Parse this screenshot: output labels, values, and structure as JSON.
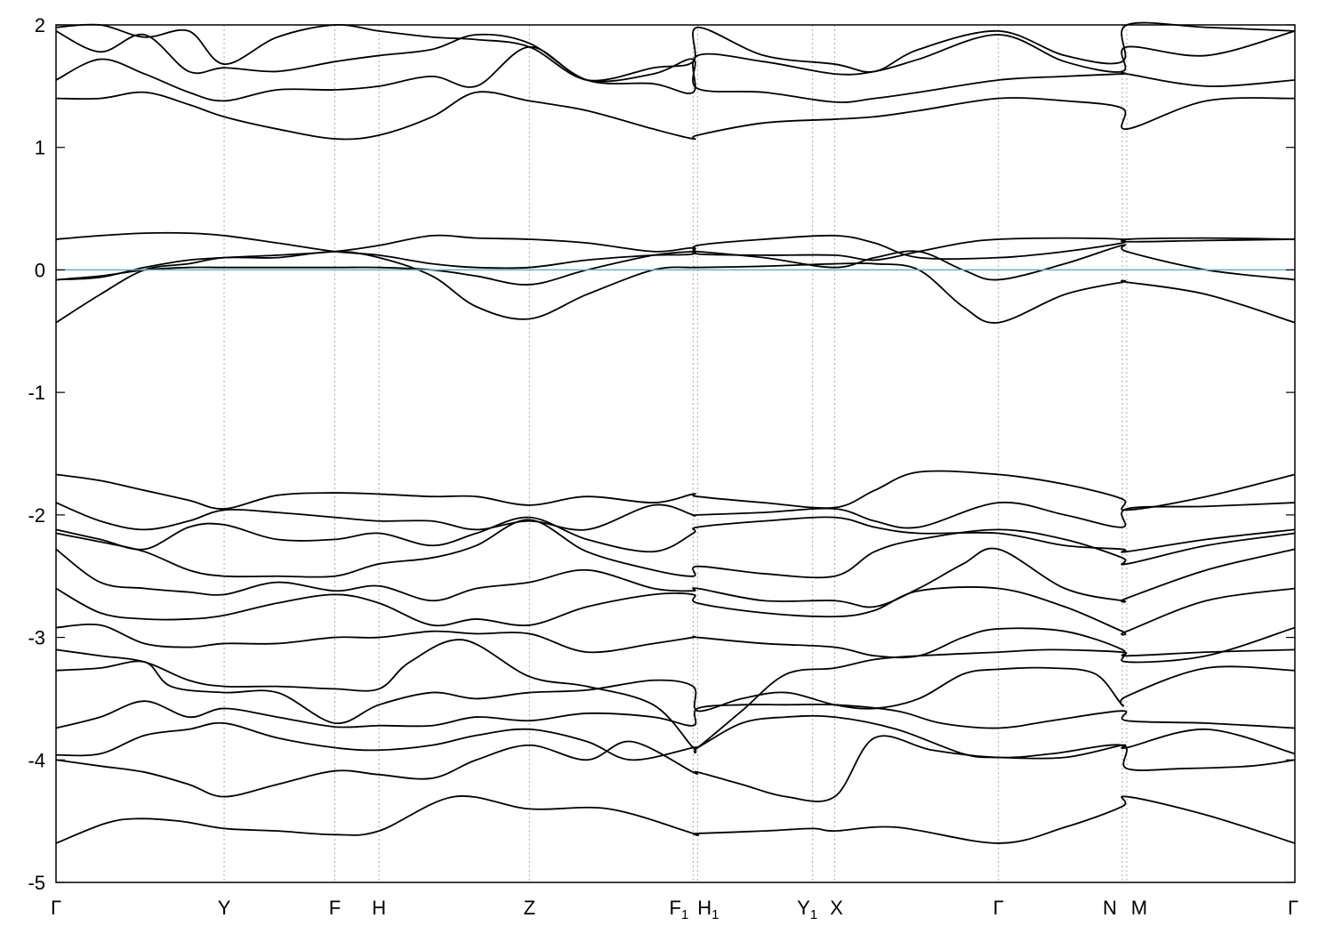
{
  "chart_data": {
    "type": "line",
    "title": "",
    "xlabel": "",
    "ylabel": "",
    "ylim": [
      -5,
      2
    ],
    "yticks": [
      -5,
      -4,
      -3,
      -2,
      -1,
      0,
      1,
      2
    ],
    "xlim": [
      0,
      28
    ],
    "grid": "vertical dotted lines at high-symmetry points",
    "fermi_level": 0,
    "colors": {
      "bands": "#000000",
      "fermi": "#5fb4c8",
      "grid": "#aaaaaa"
    },
    "kpoints": [
      {
        "label": "Γ",
        "sub": "",
        "x": 0
      },
      {
        "label": "Y",
        "sub": "",
        "x": 3.8
      },
      {
        "label": "F",
        "sub": "",
        "x": 6.3
      },
      {
        "label": "H",
        "sub": "",
        "x": 7.3
      },
      {
        "label": "Z",
        "sub": "",
        "x": 10.7
      },
      {
        "label": "F",
        "sub": "1",
        "x": 14.4
      },
      {
        "label": "H",
        "sub": "1",
        "x": 14.5
      },
      {
        "label": "Y",
        "sub": "1",
        "x": 17.1
      },
      {
        "label": "X",
        "sub": "",
        "x": 17.6
      },
      {
        "label": "Γ",
        "sub": "",
        "x": 21.3
      },
      {
        "label": "N",
        "sub": "",
        "x": 24.1
      },
      {
        "label": "M",
        "sub": "",
        "x": 24.2
      },
      {
        "label": "Γ",
        "sub": "",
        "x": 28
      }
    ],
    "series": [
      {
        "x": [
          0,
          1.1,
          1.8,
          2.8,
          3.8,
          5,
          6.3,
          7.3,
          9,
          10.7,
          12.5,
          14.4,
          14.5,
          16,
          17.1,
          17.6,
          19,
          21.3,
          22.8,
          24.1,
          24.2,
          26,
          28
        ],
        "y": [
          -4.68,
          -4.52,
          -4.48,
          -4.5,
          -4.56,
          -4.58,
          -4.61,
          -4.58,
          -4.3,
          -4.4,
          -4.4,
          -4.6,
          -4.6,
          -4.58,
          -4.56,
          -4.58,
          -4.55,
          -4.68,
          -4.55,
          -4.38,
          -4.3,
          -4.45,
          -4.68
        ]
      },
      {
        "x": [
          0,
          1,
          2,
          3,
          3.8,
          5,
          6.3,
          7.3,
          8.5,
          9.5,
          10.7,
          12,
          13,
          14.4,
          14.5,
          15.5,
          16.5,
          17.6,
          18.5,
          19.8,
          21.3,
          22.5,
          24.1,
          24.2,
          25.5,
          27,
          28
        ],
        "y": [
          -4.0,
          -4.05,
          -4.1,
          -4.2,
          -4.3,
          -4.2,
          -4.09,
          -4.12,
          -4.15,
          -4.0,
          -3.88,
          -4.0,
          -3.85,
          -4.1,
          -4.1,
          -4.2,
          -4.3,
          -4.3,
          -3.82,
          -3.92,
          -3.98,
          -3.95,
          -3.88,
          -4.07,
          -4.07,
          -4.05,
          -4.0
        ]
      },
      {
        "x": [
          0,
          1,
          2,
          3,
          3.8,
          5,
          6.3,
          7.3,
          8.5,
          9.5,
          10.7,
          12,
          13,
          14.4,
          14.5,
          15.5,
          16.5,
          17.6,
          19,
          20.5,
          21.3,
          22.8,
          24.1,
          24.2,
          26,
          28
        ],
        "y": [
          -3.96,
          -3.95,
          -3.8,
          -3.75,
          -3.7,
          -3.82,
          -3.9,
          -3.92,
          -3.88,
          -3.8,
          -3.75,
          -3.85,
          -4.0,
          -3.9,
          -3.9,
          -3.7,
          -3.65,
          -3.65,
          -3.75,
          -3.95,
          -3.98,
          -3.98,
          -3.88,
          -3.9,
          -3.75,
          -3.95
        ]
      },
      {
        "x": [
          0,
          1,
          2,
          3,
          3.8,
          5,
          6.3,
          7.3,
          8.5,
          9.5,
          10.7,
          12,
          13.5,
          14.4,
          14.5,
          15.5,
          16.5,
          17.6,
          19,
          20,
          21.3,
          22.5,
          24.1,
          24.2,
          26,
          28
        ],
        "y": [
          -3.74,
          -3.65,
          -3.52,
          -3.65,
          -3.58,
          -3.65,
          -3.73,
          -3.72,
          -3.72,
          -3.65,
          -3.68,
          -3.62,
          -3.65,
          -3.72,
          -3.58,
          -3.55,
          -3.55,
          -3.55,
          -3.6,
          -3.7,
          -3.74,
          -3.68,
          -3.6,
          -3.68,
          -3.7,
          -3.74
        ]
      },
      {
        "x": [
          0,
          1,
          2,
          2.6,
          3.8,
          5,
          6.3,
          7.3,
          8.5,
          9.5,
          10.7,
          12,
          13.5,
          14.4,
          14.5,
          15.5,
          16.5,
          17.6,
          18.5,
          19.5,
          20.5,
          21.3,
          22.5,
          23.5,
          24.1,
          24.2,
          26,
          28
        ],
        "y": [
          -3.27,
          -3.25,
          -3.2,
          -3.4,
          -3.45,
          -3.45,
          -3.7,
          -3.55,
          -3.45,
          -3.5,
          -3.45,
          -3.43,
          -3.35,
          -3.4,
          -3.6,
          -3.5,
          -3.45,
          -3.55,
          -3.58,
          -3.5,
          -3.3,
          -3.26,
          -3.25,
          -3.3,
          -3.55,
          -3.48,
          -3.25,
          -3.27
        ]
      },
      {
        "x": [
          0,
          1,
          2,
          3,
          3.8,
          5,
          6.3,
          7.3,
          8,
          9.2,
          10.7,
          12,
          13.5,
          14.4,
          14.5,
          15.5,
          16.5,
          17.6,
          18.5,
          19.5,
          21.3,
          22.5,
          24.1,
          24.2,
          26,
          28
        ],
        "y": [
          -3.1,
          -3.15,
          -3.2,
          -3.35,
          -3.4,
          -3.4,
          -3.42,
          -3.42,
          -3.2,
          -3.02,
          -3.32,
          -3.4,
          -3.55,
          -3.9,
          -3.9,
          -3.6,
          -3.3,
          -3.25,
          -3.18,
          -3.15,
          -3.12,
          -3.1,
          -3.12,
          -3.15,
          -3.12,
          -3.1
        ]
      },
      {
        "x": [
          0,
          1,
          2,
          3,
          3.8,
          5,
          6.3,
          7.3,
          8.5,
          9.5,
          10.7,
          12,
          13.5,
          14.4,
          14.5,
          16,
          17.6,
          18.5,
          19.5,
          20.5,
          21.3,
          22.8,
          24.1,
          24.2,
          26,
          28
        ],
        "y": [
          -2.92,
          -2.9,
          -3.05,
          -3.08,
          -3.05,
          -3.05,
          -3.0,
          -3.0,
          -2.95,
          -2.97,
          -2.97,
          -3.12,
          -3.05,
          -3.0,
          -3.0,
          -3.05,
          -3.08,
          -3.15,
          -3.15,
          -3.0,
          -2.93,
          -2.95,
          -3.1,
          -3.2,
          -3.15,
          -2.92
        ]
      },
      {
        "x": [
          0,
          1,
          2,
          3,
          3.8,
          5,
          6.3,
          7.3,
          8.5,
          9.5,
          10.7,
          12,
          13.5,
          14.4,
          14.5,
          16,
          17.6,
          18.5,
          19.5,
          21.3,
          22.8,
          24.1,
          24.2,
          26,
          28
        ],
        "y": [
          -2.6,
          -2.8,
          -2.85,
          -2.85,
          -2.82,
          -2.72,
          -2.65,
          -2.72,
          -2.9,
          -2.85,
          -2.9,
          -2.75,
          -2.65,
          -2.65,
          -2.72,
          -2.8,
          -2.83,
          -2.78,
          -2.62,
          -2.6,
          -2.75,
          -2.95,
          -2.95,
          -2.7,
          -2.6
        ]
      },
      {
        "x": [
          0,
          1,
          2,
          3,
          3.8,
          5,
          6.3,
          7.3,
          8.5,
          9.5,
          10.7,
          12,
          13.5,
          14.4,
          14.5,
          16,
          17.6,
          18.5,
          19.5,
          20.5,
          21.3,
          22.8,
          24.1,
          24.2,
          26,
          28
        ],
        "y": [
          -2.28,
          -2.55,
          -2.6,
          -2.63,
          -2.65,
          -2.55,
          -2.62,
          -2.58,
          -2.7,
          -2.6,
          -2.55,
          -2.45,
          -2.6,
          -2.62,
          -2.6,
          -2.7,
          -2.7,
          -2.75,
          -2.6,
          -2.4,
          -2.28,
          -2.6,
          -2.7,
          -2.68,
          -2.45,
          -2.28
        ]
      },
      {
        "x": [
          0,
          1,
          2,
          3,
          3.8,
          5,
          6.3,
          7.3,
          8.5,
          9.5,
          10.7,
          12,
          13.5,
          14.4,
          14.5,
          16,
          17.6,
          18.5,
          19.5,
          21.3,
          22.8,
          24.1,
          24.2,
          26,
          28
        ],
        "y": [
          -2.15,
          -2.22,
          -2.3,
          -2.45,
          -2.5,
          -2.5,
          -2.5,
          -2.4,
          -2.35,
          -2.25,
          -2.04,
          -2.3,
          -2.45,
          -2.5,
          -2.42,
          -2.48,
          -2.5,
          -2.3,
          -2.2,
          -2.12,
          -2.2,
          -2.35,
          -2.4,
          -2.25,
          -2.15
        ]
      },
      {
        "x": [
          0,
          1,
          2,
          3,
          3.8,
          5,
          6.3,
          7.3,
          8.5,
          9.5,
          10.7,
          12,
          13.5,
          14.4,
          14.5,
          16,
          17.6,
          18.5,
          19.5,
          21.3,
          22.8,
          24.1,
          24.2,
          26,
          28
        ],
        "y": [
          -2.12,
          -2.2,
          -2.28,
          -2.1,
          -2.08,
          -2.2,
          -2.2,
          -2.15,
          -2.25,
          -2.15,
          -2.02,
          -2.2,
          -2.3,
          -2.15,
          -2.1,
          -2.05,
          -2.02,
          -2.1,
          -2.15,
          -2.15,
          -2.25,
          -2.28,
          -2.3,
          -2.2,
          -2.12
        ]
      },
      {
        "x": [
          0,
          1,
          2,
          3,
          3.8,
          5,
          6.3,
          7.3,
          8.5,
          9.5,
          10.7,
          12,
          13.5,
          14.4,
          14.5,
          16,
          17.6,
          18.5,
          19.5,
          21.3,
          22.8,
          24.1,
          24.2,
          26,
          28
        ],
        "y": [
          -1.9,
          -2.05,
          -2.12,
          -2.05,
          -1.96,
          -1.98,
          -2.02,
          -2.05,
          -2.05,
          -2.12,
          -2.05,
          -2.12,
          -1.92,
          -2.0,
          -2.0,
          -1.98,
          -1.95,
          -2.05,
          -2.1,
          -1.9,
          -2.0,
          -2.1,
          -1.95,
          -1.93,
          -1.9
        ]
      },
      {
        "x": [
          0,
          1,
          2,
          3,
          3.8,
          5,
          6.3,
          7.3,
          8.5,
          9.5,
          10.7,
          12,
          13.5,
          14.4,
          14.5,
          16,
          17.6,
          18.5,
          19.5,
          21.3,
          22.8,
          24.1,
          24.2,
          26,
          28
        ],
        "y": [
          -1.67,
          -1.72,
          -1.8,
          -1.88,
          -1.95,
          -1.84,
          -1.82,
          -1.83,
          -1.85,
          -1.85,
          -1.92,
          -1.85,
          -1.9,
          -1.83,
          -1.85,
          -1.9,
          -1.94,
          -1.8,
          -1.65,
          -1.67,
          -1.75,
          -1.87,
          -1.96,
          -1.85,
          -1.67
        ]
      },
      {
        "x": [
          0,
          1,
          2,
          3,
          3.8,
          5,
          6.3,
          7.3,
          8.5,
          9.5,
          10.7,
          12,
          13.5,
          14.4,
          14.5,
          16,
          17.6,
          18.5,
          19.5,
          20.5,
          21.3,
          22.8,
          24.1,
          24.2,
          26,
          28
        ],
        "y": [
          -0.43,
          -0.2,
          0.0,
          0.05,
          0.1,
          0.1,
          0.15,
          0.1,
          -0.05,
          -0.3,
          -0.4,
          -0.2,
          0.0,
          0.02,
          0.02,
          0.03,
          0.05,
          0.05,
          0.0,
          -0.3,
          -0.43,
          -0.2,
          -0.1,
          -0.1,
          -0.2,
          -0.43
        ]
      },
      {
        "x": [
          0,
          1,
          2,
          3,
          3.8,
          5,
          6.3,
          7.3,
          8.5,
          9.5,
          10.7,
          12,
          13.5,
          14.4,
          14.5,
          16,
          17.6,
          18.5,
          19.5,
          20.5,
          21.3,
          22.8,
          24.1,
          24.2,
          26,
          28
        ],
        "y": [
          -0.08,
          -0.05,
          0.0,
          0.02,
          0.02,
          0.02,
          0.02,
          0.02,
          0.0,
          -0.05,
          -0.12,
          0.0,
          0.12,
          0.15,
          0.15,
          0.1,
          0.02,
          0.1,
          0.15,
          0.0,
          -0.08,
          0.05,
          0.2,
          0.15,
          0.0,
          -0.08
        ]
      },
      {
        "x": [
          0,
          1,
          2,
          3,
          3.8,
          5,
          6.3,
          7.3,
          8.5,
          9.5,
          10.7,
          12,
          13.5,
          14.4,
          14.5,
          16,
          17.6,
          18.5,
          19.5,
          20.5,
          21.3,
          22.8,
          24.1,
          24.2,
          26,
          28
        ],
        "y": [
          -0.08,
          -0.06,
          0.02,
          0.08,
          0.1,
          0.12,
          0.15,
          0.2,
          0.28,
          0.26,
          0.25,
          0.22,
          0.15,
          0.18,
          0.13,
          0.12,
          0.12,
          0.08,
          0.15,
          0.22,
          0.25,
          0.26,
          0.25,
          0.23,
          0.24,
          0.25
        ]
      },
      {
        "x": [
          0,
          1,
          2,
          3,
          3.8,
          5,
          6.3,
          7.3,
          8.5,
          9.5,
          10.7,
          12,
          13.5,
          14.4,
          14.5,
          16,
          17.6,
          18.5,
          19.5,
          21.3,
          22.8,
          24.1,
          24.2,
          26,
          28
        ],
        "y": [
          0.25,
          0.28,
          0.3,
          0.3,
          0.28,
          0.22,
          0.15,
          0.12,
          0.05,
          0.02,
          0.02,
          0.08,
          0.12,
          0.13,
          0.2,
          0.25,
          0.28,
          0.22,
          0.1,
          0.1,
          0.15,
          0.22,
          0.25,
          0.26,
          0.25
        ]
      },
      {
        "x": [
          0,
          1,
          2,
          3,
          3.8,
          5,
          6.3,
          7.3,
          8.5,
          9.5,
          10.7,
          12,
          13.5,
          14.4,
          14.5,
          16,
          17.6,
          18.5,
          19.5,
          21.3,
          22.8,
          24.1,
          24.2,
          26,
          28
        ],
        "y": [
          1.4,
          1.4,
          1.45,
          1.35,
          1.25,
          1.15,
          1.07,
          1.1,
          1.25,
          1.45,
          1.38,
          1.3,
          1.15,
          1.07,
          1.1,
          1.2,
          1.23,
          1.25,
          1.3,
          1.4,
          1.38,
          1.32,
          1.15,
          1.38,
          1.4
        ]
      },
      {
        "x": [
          0,
          1,
          2,
          3,
          3.8,
          5,
          6.3,
          7.3,
          8.5,
          9.5,
          10.7,
          12,
          13.5,
          14.4,
          14.5,
          16,
          17.6,
          18.5,
          19.5,
          21.3,
          22.8,
          24.1,
          24.2,
          26,
          28
        ],
        "y": [
          1.55,
          1.72,
          1.6,
          1.45,
          1.38,
          1.47,
          1.47,
          1.5,
          1.58,
          1.5,
          1.82,
          1.55,
          1.6,
          1.72,
          1.48,
          1.45,
          1.37,
          1.4,
          1.45,
          1.55,
          1.58,
          1.6,
          1.6,
          1.5,
          1.55
        ]
      },
      {
        "x": [
          0,
          1,
          2,
          3,
          3.8,
          5,
          6.3,
          7.3,
          8.5,
          9.5,
          10.7,
          12,
          13.5,
          14.4,
          14.5,
          16,
          17.6,
          18.5,
          19.5,
          21.3,
          22.8,
          24.1,
          24.2,
          26,
          28
        ],
        "y": [
          1.95,
          1.78,
          1.92,
          1.62,
          1.65,
          1.62,
          1.7,
          1.75,
          1.8,
          1.92,
          1.85,
          1.55,
          1.52,
          1.45,
          1.75,
          1.7,
          1.6,
          1.62,
          1.72,
          1.92,
          1.7,
          1.62,
          1.82,
          1.75,
          1.95
        ]
      },
      {
        "x": [
          0,
          1,
          2,
          3,
          3.8,
          5,
          6.3,
          7.3,
          8.5,
          9.5,
          10.7,
          12,
          13.5,
          14.4,
          14.5,
          16,
          17.6,
          18.5,
          19.5,
          21.3,
          22.8,
          24.1,
          24.2,
          26,
          28
        ],
        "y": [
          1.98,
          2.0,
          1.9,
          1.95,
          1.68,
          1.9,
          2.0,
          1.95,
          1.9,
          1.88,
          1.82,
          1.55,
          1.65,
          1.7,
          1.98,
          1.75,
          1.68,
          1.62,
          1.8,
          1.95,
          1.75,
          1.7,
          2.0,
          1.98,
          1.95
        ]
      }
    ]
  }
}
